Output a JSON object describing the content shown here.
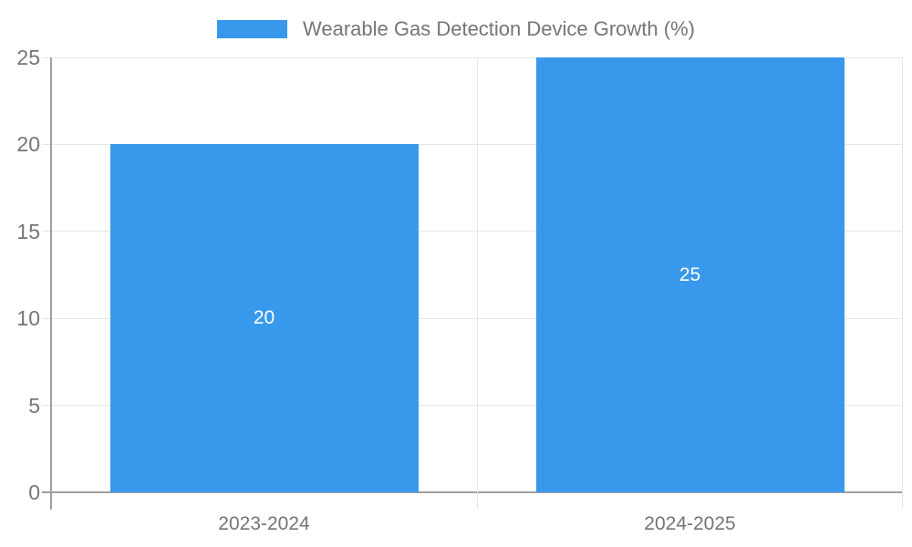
{
  "chart_data": {
    "type": "bar",
    "title": "Wearable Gas Detection Device Growth (%)",
    "categories": [
      "2023-2024",
      "2024-2025"
    ],
    "series": [
      {
        "name": "Wearable Gas Detection Device Growth (%)",
        "values": [
          20,
          25
        ]
      }
    ],
    "values": [
      20,
      25
    ],
    "value_labels": [
      "20",
      "25"
    ],
    "xlabel": "",
    "ylabel": "",
    "ylim": [
      0,
      25
    ],
    "yticks": [
      0,
      5,
      10,
      15,
      20,
      25
    ],
    "grid": true,
    "legend_position": "top-center",
    "legend": {
      "label": "Wearable Gas Detection Device Growth (%)"
    },
    "colors": {
      "bar": "#3899ec",
      "value_label": "#ffffff",
      "axis_text": "#757575",
      "gridline": "#e6e6e6",
      "axis_line": "#a0a0a0"
    }
  }
}
